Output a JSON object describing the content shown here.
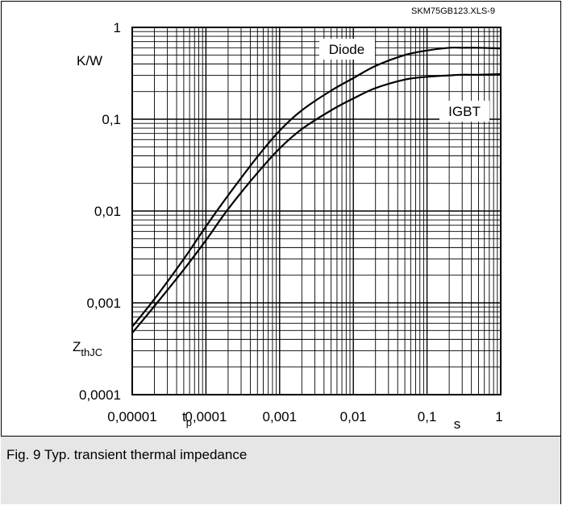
{
  "file_ref": "SKM75GB123.XLS-9",
  "caption": "Fig. 9 Typ. transient thermal impedance",
  "chart_data": {
    "type": "line",
    "title": "",
    "xlabel": "s",
    "ylabel": "K/W",
    "y_symbol_main": "Z",
    "y_symbol_sub": "thJC",
    "x_extra_label_main": "t",
    "x_extra_label_sub": "p",
    "x_scale": "log",
    "y_scale": "log",
    "xlim": [
      1e-05,
      1
    ],
    "ylim": [
      0.0001,
      1
    ],
    "grid": true,
    "x_tick_labels": [
      "0,00001",
      "0,0001",
      "0,001",
      "0,01",
      "0,1",
      "1"
    ],
    "y_tick_labels": [
      "0,0001",
      "0,001",
      "0,01",
      "0,1",
      "1"
    ],
    "series": [
      {
        "name": "Diode",
        "x": [
          1e-05,
          2e-05,
          5e-05,
          0.0001,
          0.0002,
          0.0005,
          0.001,
          0.002,
          0.005,
          0.01,
          0.02,
          0.05,
          0.1,
          0.2,
          0.3,
          0.5,
          1
        ],
        "y": [
          0.00055,
          0.0011,
          0.003,
          0.0068,
          0.0148,
          0.039,
          0.075,
          0.125,
          0.205,
          0.28,
          0.38,
          0.5,
          0.56,
          0.6,
          0.6,
          0.6,
          0.59
        ]
      },
      {
        "name": "IGBT",
        "x": [
          1e-05,
          2e-05,
          5e-05,
          0.0001,
          0.0002,
          0.0005,
          0.001,
          0.002,
          0.005,
          0.01,
          0.02,
          0.05,
          0.1,
          0.2,
          0.3,
          0.5,
          1
        ],
        "y": [
          0.00047,
          0.00092,
          0.0023,
          0.0048,
          0.0105,
          0.026,
          0.048,
          0.078,
          0.125,
          0.168,
          0.218,
          0.27,
          0.29,
          0.3,
          0.305,
          0.305,
          0.31
        ]
      }
    ]
  }
}
